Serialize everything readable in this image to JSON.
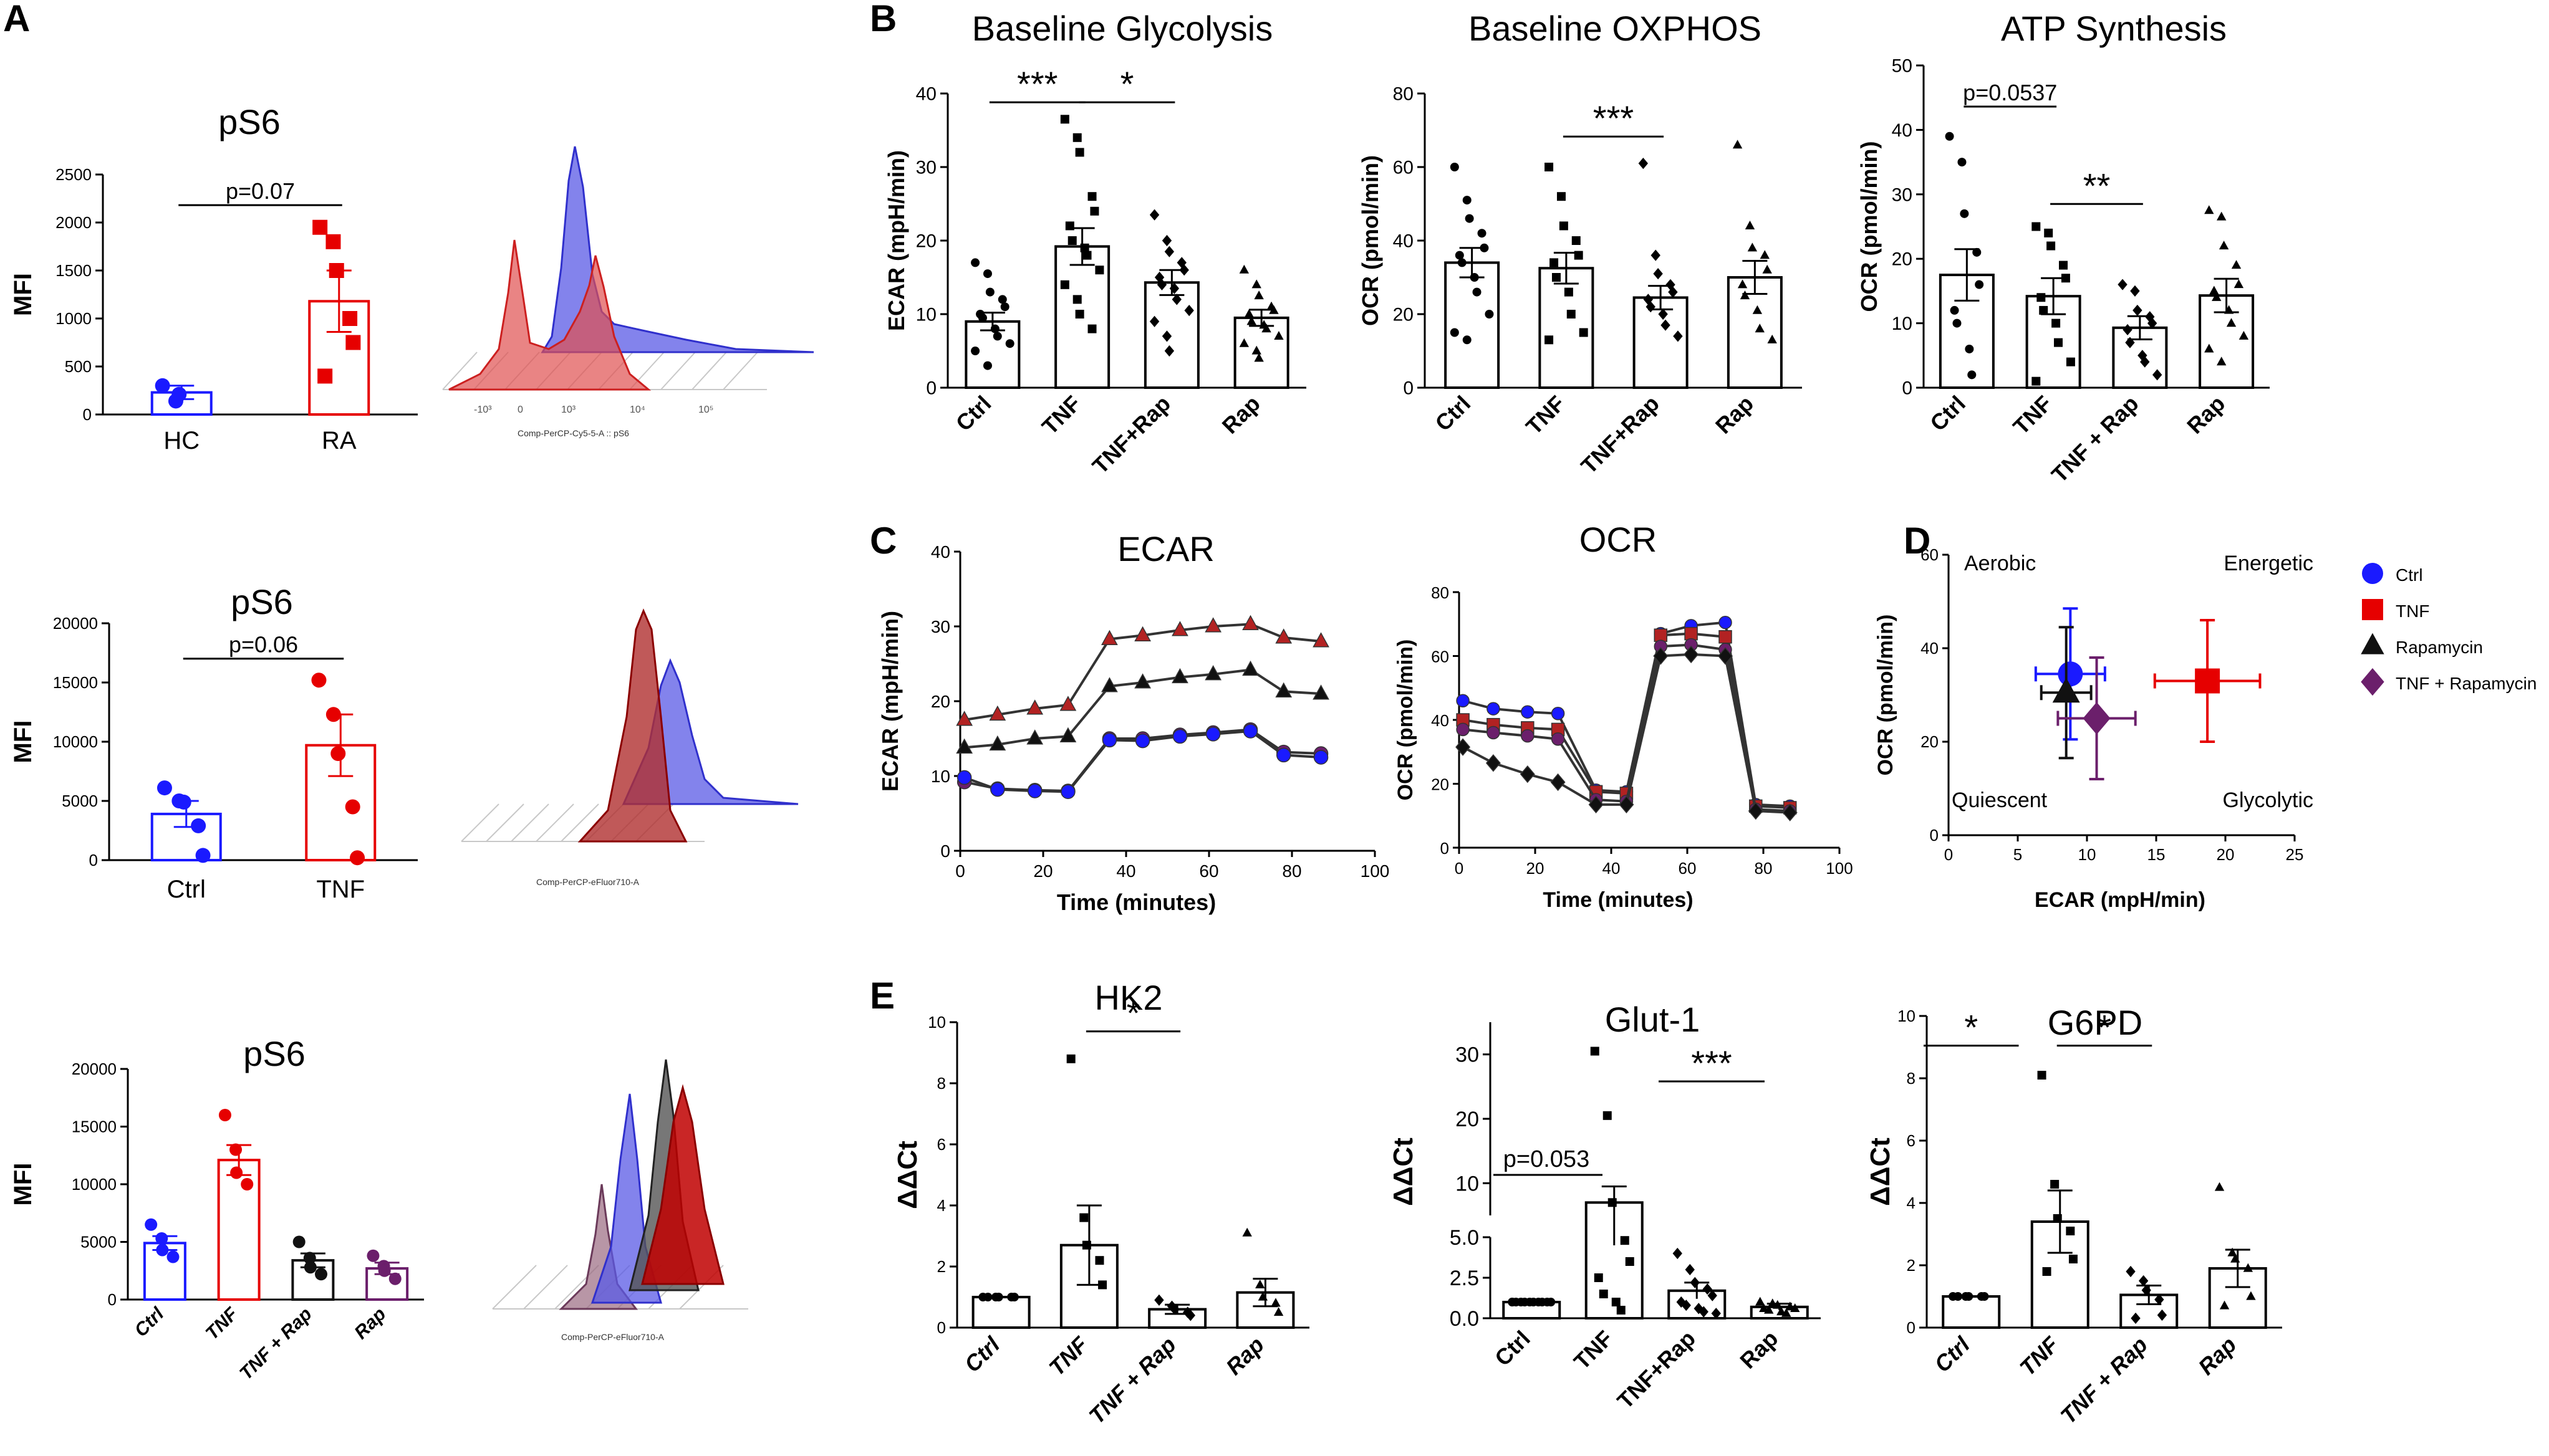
{
  "panel_letters": [
    "A",
    "B",
    "C",
    "D",
    "E"
  ],
  "flow_axis_labels": [
    "Comp-PerCP-Cy5-5-A :: pS6",
    "Comp-PerCP-eFluor710-A",
    "Comp-PerCP-eFluor710-A"
  ],
  "colors": {
    "ctrl": "#1a1aff",
    "tnf": "#e60000",
    "rap": "#111111",
    "tnfrap": "#6b1f6b",
    "hist_red": "#e05050",
    "hist_blue": "#5a5ae6",
    "hist_dark": "#8b0000",
    "black": "#000000"
  },
  "chart_data": [
    {
      "id": "A1",
      "type": "bar",
      "title": "pS6",
      "ylabel": "MFI",
      "ylim": [
        0,
        2500
      ],
      "yticks": [
        "0",
        "500",
        "1000",
        "1500",
        "2000",
        "2500"
      ],
      "categories": [
        "HC",
        "RA"
      ],
      "means": [
        230,
        1180
      ],
      "sem": [
        70,
        320
      ],
      "points": [
        [
          300,
          140,
          210
        ],
        [
          1950,
          1800,
          1500,
          1000,
          750,
          400
        ]
      ],
      "point_colors": [
        "#1a1aff",
        "#e60000"
      ],
      "marker": "circle-square",
      "annotations": [
        {
          "text": "p=0.07",
          "from": 0,
          "to": 1
        }
      ]
    },
    {
      "id": "A2",
      "type": "bar",
      "title": "pS6",
      "ylabel": "MFI",
      "ylim": [
        0,
        20000
      ],
      "yticks": [
        "0",
        "5000",
        "10000",
        "15000",
        "20000"
      ],
      "categories": [
        "Ctrl",
        "TNF"
      ],
      "means": [
        3900,
        9700
      ],
      "sem": [
        1100,
        2600
      ],
      "points": [
        [
          6100,
          5000,
          4900,
          2900,
          400
        ],
        [
          15200,
          12300,
          9000,
          4500,
          200
        ]
      ],
      "point_colors": [
        "#1a1aff",
        "#e60000"
      ],
      "annotations": [
        {
          "text": "p=0.06",
          "from": 0,
          "to": 1
        }
      ]
    },
    {
      "id": "A3",
      "type": "bar",
      "title": "pS6",
      "ylabel": "MFI",
      "ylim": [
        0,
        20000
      ],
      "yticks": [
        "0",
        "5000",
        "10000",
        "15000",
        "20000"
      ],
      "categories": [
        "Ctrl",
        "TNF",
        "TNF + Rap",
        "Rap"
      ],
      "means": [
        4900,
        12100,
        3400,
        2700
      ],
      "sem": [
        600,
        1300,
        600,
        500
      ],
      "points": [
        [
          6500,
          5300,
          4300,
          3700
        ],
        [
          16000,
          13000,
          11000,
          10000
        ],
        [
          5000,
          3600,
          2800,
          2200
        ],
        [
          3800,
          2900,
          2500,
          1800
        ]
      ],
      "point_colors": [
        "#1a1aff",
        "#e60000",
        "#111111",
        "#6b1f6b"
      ],
      "italic_ticks": true
    },
    {
      "id": "B1",
      "type": "bar",
      "title": "Baseline Glycolysis",
      "ylabel": "ECAR (mpH/min)",
      "ylim": [
        0,
        40
      ],
      "yticks": [
        "0",
        "10",
        "20",
        "30",
        "40"
      ],
      "categories": [
        "Ctrl",
        "TNF",
        "TNF+Rap",
        "Rap"
      ],
      "means": [
        9,
        19.2,
        14.3,
        9.5
      ],
      "sem": [
        1.2,
        2.5,
        1.7,
        1.1
      ],
      "points": [
        [
          17,
          15.5,
          13,
          12,
          11,
          10,
          9.5,
          8,
          7,
          6,
          5,
          3
        ],
        [
          36.5,
          34,
          32,
          26,
          24,
          22,
          20,
          19,
          18,
          16,
          14,
          12,
          10,
          8
        ],
        [
          23.5,
          20,
          18.5,
          17,
          16,
          15,
          14,
          13.5,
          12,
          10.5,
          9,
          7,
          5
        ],
        [
          16,
          14,
          12.5,
          11,
          10.5,
          10,
          9,
          8.5,
          8,
          7,
          6,
          5,
          4
        ]
      ],
      "annotations": [
        {
          "text": "***",
          "from": 0,
          "to": 1
        },
        {
          "text": "*",
          "from": 1,
          "to": 2
        }
      ]
    },
    {
      "id": "B2",
      "type": "bar",
      "title": "Baseline OXPHOS",
      "ylabel": "OCR (pmol/min)",
      "ylim": [
        0,
        80
      ],
      "yticks": [
        "0",
        "20",
        "40",
        "60",
        "80"
      ],
      "categories": [
        "Ctrl",
        "TNF",
        "TNF+Rap",
        "Rap"
      ],
      "means": [
        34,
        32.5,
        24.5,
        30
      ],
      "sem": [
        4,
        4.2,
        3.2,
        4.5
      ],
      "points": [
        [
          60,
          51,
          46,
          42,
          38,
          36,
          34,
          30,
          26,
          20,
          15,
          13
        ],
        [
          60,
          52,
          44,
          40,
          36,
          34,
          30,
          26,
          20,
          15,
          13
        ],
        [
          61,
          36,
          31,
          28,
          26,
          24,
          22,
          20,
          17,
          14
        ],
        [
          66,
          44,
          38,
          36,
          32,
          28,
          25,
          21,
          16,
          13
        ]
      ],
      "annotations": [
        {
          "text": "***",
          "from": 1,
          "to": 2
        }
      ]
    },
    {
      "id": "B3",
      "type": "bar",
      "title": "ATP Synthesis",
      "ylabel": "OCR (pmol/min)",
      "ylim": [
        0,
        50
      ],
      "yticks": [
        "0",
        "10",
        "20",
        "30",
        "40",
        "50"
      ],
      "categories": [
        "Ctrl",
        "TNF",
        "TNF + Rap",
        "Rap"
      ],
      "means": [
        17.5,
        14.2,
        9.3,
        14.3
      ],
      "sem": [
        4,
        2.8,
        1.8,
        2.6
      ],
      "points": [
        [
          39,
          35,
          27,
          21,
          16,
          12,
          10,
          6,
          2
        ],
        [
          25,
          24,
          22,
          19,
          17,
          14,
          12,
          10,
          7,
          4,
          1
        ],
        [
          16,
          15,
          12,
          11,
          10,
          9,
          7,
          5,
          4,
          2
        ],
        [
          27.5,
          26.5,
          22,
          19,
          16,
          15,
          14,
          12,
          10,
          8,
          6,
          4
        ]
      ],
      "annotations": [
        {
          "text": "p=0.0537",
          "from": 0,
          "to": 1
        },
        {
          "text": "**",
          "from": 1,
          "to": 2
        }
      ]
    },
    {
      "id": "C1",
      "type": "line",
      "title": "ECAR",
      "xlabel": "Time (minutes)",
      "ylabel": "ECAR (mpH/min)",
      "xlim": [
        0,
        100
      ],
      "ylim": [
        0,
        40
      ],
      "xticks": [
        "0",
        "20",
        "40",
        "60",
        "80",
        "100"
      ],
      "yticks": [
        "0",
        "10",
        "20",
        "30",
        "40"
      ],
      "x": [
        1,
        9,
        18,
        26,
        36,
        44,
        53,
        61,
        70,
        78,
        87
      ],
      "series": [
        {
          "name": "TNF",
          "color": "#b22222",
          "marker": "triangle",
          "values": [
            17.5,
            18.2,
            19,
            19.5,
            28.3,
            28.8,
            29.5,
            30,
            30.3,
            28.5,
            28
          ]
        },
        {
          "name": "Rapamycin",
          "color": "#111111",
          "marker": "triangle",
          "values": [
            13.8,
            14.2,
            15,
            15.3,
            22,
            22.5,
            23.2,
            23.6,
            24.2,
            21.3,
            21
          ]
        },
        {
          "name": "TNF + Rapamycin",
          "color": "#6b1f6b",
          "marker": "circle",
          "values": [
            9.2,
            8.3,
            8.1,
            8,
            15,
            15,
            15.5,
            15.8,
            16.2,
            13.2,
            13
          ]
        },
        {
          "name": "Ctrl",
          "color": "#1a1aff",
          "marker": "circle",
          "values": [
            9.8,
            8.2,
            8,
            7.9,
            14.8,
            14.7,
            15.3,
            15.6,
            16,
            12.8,
            12.5
          ]
        }
      ]
    },
    {
      "id": "C2",
      "type": "line",
      "title": "OCR",
      "xlabel": "Time (minutes)",
      "ylabel": "OCR (pmol/min)",
      "xlim": [
        0,
        100
      ],
      "ylim": [
        0,
        80
      ],
      "xticks": [
        "0",
        "20",
        "40",
        "60",
        "80",
        "100"
      ],
      "yticks": [
        "0",
        "20",
        "40",
        "60",
        "80"
      ],
      "x": [
        1,
        9,
        18,
        26,
        36,
        44,
        53,
        61,
        70,
        78,
        87
      ],
      "series": [
        {
          "name": "Ctrl",
          "color": "#1a1aff",
          "marker": "circle",
          "values": [
            46,
            43.5,
            42.5,
            42,
            18,
            17.5,
            67,
            69.5,
            70.5,
            13.5,
            13
          ]
        },
        {
          "name": "TNF",
          "color": "#b22222",
          "marker": "square",
          "values": [
            40,
            38.5,
            37.5,
            37,
            17.5,
            17,
            66.5,
            67,
            66,
            13,
            12.5
          ]
        },
        {
          "name": "TNF + Rapamycin",
          "color": "#6b1f6b",
          "marker": "circle",
          "values": [
            37,
            36,
            35,
            34,
            15,
            14.5,
            63,
            63.5,
            62,
            12,
            11.5
          ]
        },
        {
          "name": "Rapamycin",
          "color": "#111111",
          "marker": "diamond",
          "values": [
            31.5,
            26.5,
            23,
            20.5,
            13.5,
            13.5,
            60,
            60.5,
            60,
            11.5,
            11
          ]
        }
      ]
    },
    {
      "id": "D",
      "type": "scatter",
      "xlabel": "ECAR (mpH/min)",
      "ylabel": "OCR (pmol/min)",
      "xlim": [
        0,
        25
      ],
      "ylim": [
        0,
        60
      ],
      "xticks": [
        "0",
        "5",
        "10",
        "15",
        "20",
        "25"
      ],
      "yticks": [
        "0",
        "20",
        "40",
        "60"
      ],
      "quadrant_labels": [
        "Aerobic",
        "Energetic",
        "Quiescent",
        "Glycolytic"
      ],
      "series": [
        {
          "name": "Ctrl",
          "color": "#1a1aff",
          "marker": "circle",
          "x": 8.8,
          "y": 34.5,
          "xerr": 2.5,
          "yerr": 14
        },
        {
          "name": "TNF",
          "color": "#e60000",
          "marker": "square",
          "x": 18.7,
          "y": 33,
          "xerr": 3.8,
          "yerr": 13
        },
        {
          "name": "Rapamycin",
          "color": "#111111",
          "marker": "triangle",
          "x": 8.5,
          "y": 30.5,
          "xerr": 1.8,
          "yerr": 14
        },
        {
          "name": "TNF + Rapamycin",
          "color": "#6b1f6b",
          "marker": "diamond",
          "x": 10.7,
          "y": 25,
          "xerr": 2.8,
          "yerr": 13
        }
      ]
    },
    {
      "id": "E1",
      "type": "bar",
      "title": "HK2",
      "ylabel": "ΔΔCt",
      "ylim": [
        0,
        10
      ],
      "yticks": [
        "0",
        "2",
        "4",
        "6",
        "8",
        "10"
      ],
      "categories": [
        "Ctrl",
        "TNF",
        "TNF + Rap",
        "Rap"
      ],
      "means": [
        1,
        2.7,
        0.6,
        1.15
      ],
      "sem": [
        0,
        1.3,
        0.15,
        0.45
      ],
      "points": [
        [
          1,
          1,
          1,
          1,
          1,
          1
        ],
        [
          8.8,
          3.6,
          2.7,
          2.2,
          1.4
        ],
        [
          0.9,
          0.7,
          0.6,
          0.5,
          0.4
        ],
        [
          3.1,
          1.4,
          1,
          0.8,
          0.5
        ]
      ],
      "italic_ticks": true,
      "annotations": [
        {
          "text": "*",
          "from": 1,
          "to": 2
        }
      ]
    },
    {
      "id": "E2",
      "type": "bar",
      "title": "Glut-1",
      "ylabel": "ΔΔCt",
      "broken_axis": {
        "lower_range": [
          0,
          5
        ],
        "upper_range": [
          5,
          35
        ]
      },
      "yticks_lower": [
        "0.0",
        "2.5",
        "5.0"
      ],
      "yticks_upper": [
        "10",
        "20",
        "30"
      ],
      "categories": [
        "Ctrl",
        "TNF",
        "TNF+Rap",
        "Rap"
      ],
      "means": [
        1,
        7,
        1.7,
        0.7
      ],
      "sem": [
        0.05,
        2.5,
        0.5,
        0.2
      ],
      "points": [
        [
          1,
          1,
          1,
          1,
          1,
          1,
          1,
          1,
          1,
          1,
          1
        ],
        [
          30.5,
          20.5,
          7,
          4.8,
          3.5,
          2.5,
          1.5,
          1,
          0.5
        ],
        [
          4,
          3,
          2.2,
          1.8,
          1.4,
          1,
          0.8,
          0.6,
          0.4,
          0.3
        ],
        [
          1,
          0.9,
          0.8,
          0.7,
          0.6,
          0.6,
          0.5,
          0.4,
          0.3
        ]
      ],
      "annotations": [
        {
          "text": "p=0.053",
          "from": -0.5,
          "to": 0.5
        },
        {
          "text": "***",
          "from": 1.5,
          "to": 3
        }
      ]
    },
    {
      "id": "E3",
      "type": "bar",
      "title": "G6PD",
      "ylabel": "ΔΔCt",
      "ylim": [
        0,
        10
      ],
      "yticks": [
        "0",
        "2",
        "4",
        "6",
        "8",
        "10"
      ],
      "categories": [
        "Ctrl",
        "TNF",
        "TNF + Rap",
        "Rap"
      ],
      "means": [
        1,
        3.4,
        1.05,
        1.9
      ],
      "sem": [
        0,
        1,
        0.3,
        0.6
      ],
      "points": [
        [
          1,
          1,
          1,
          1,
          1,
          1
        ],
        [
          8.1,
          4.6,
          3.5,
          3.1,
          2.2,
          1.8
        ],
        [
          1.8,
          1.5,
          1.2,
          0.9,
          0.4,
          0.3
        ],
        [
          4.5,
          2.4,
          2.2,
          1.9,
          1,
          0.7
        ]
      ],
      "italic_ticks": true,
      "annotations": [
        {
          "text": "*",
          "from": -0.5,
          "to": 0.5
        },
        {
          "text": "*",
          "from": 1,
          "to": 2
        }
      ]
    }
  ]
}
